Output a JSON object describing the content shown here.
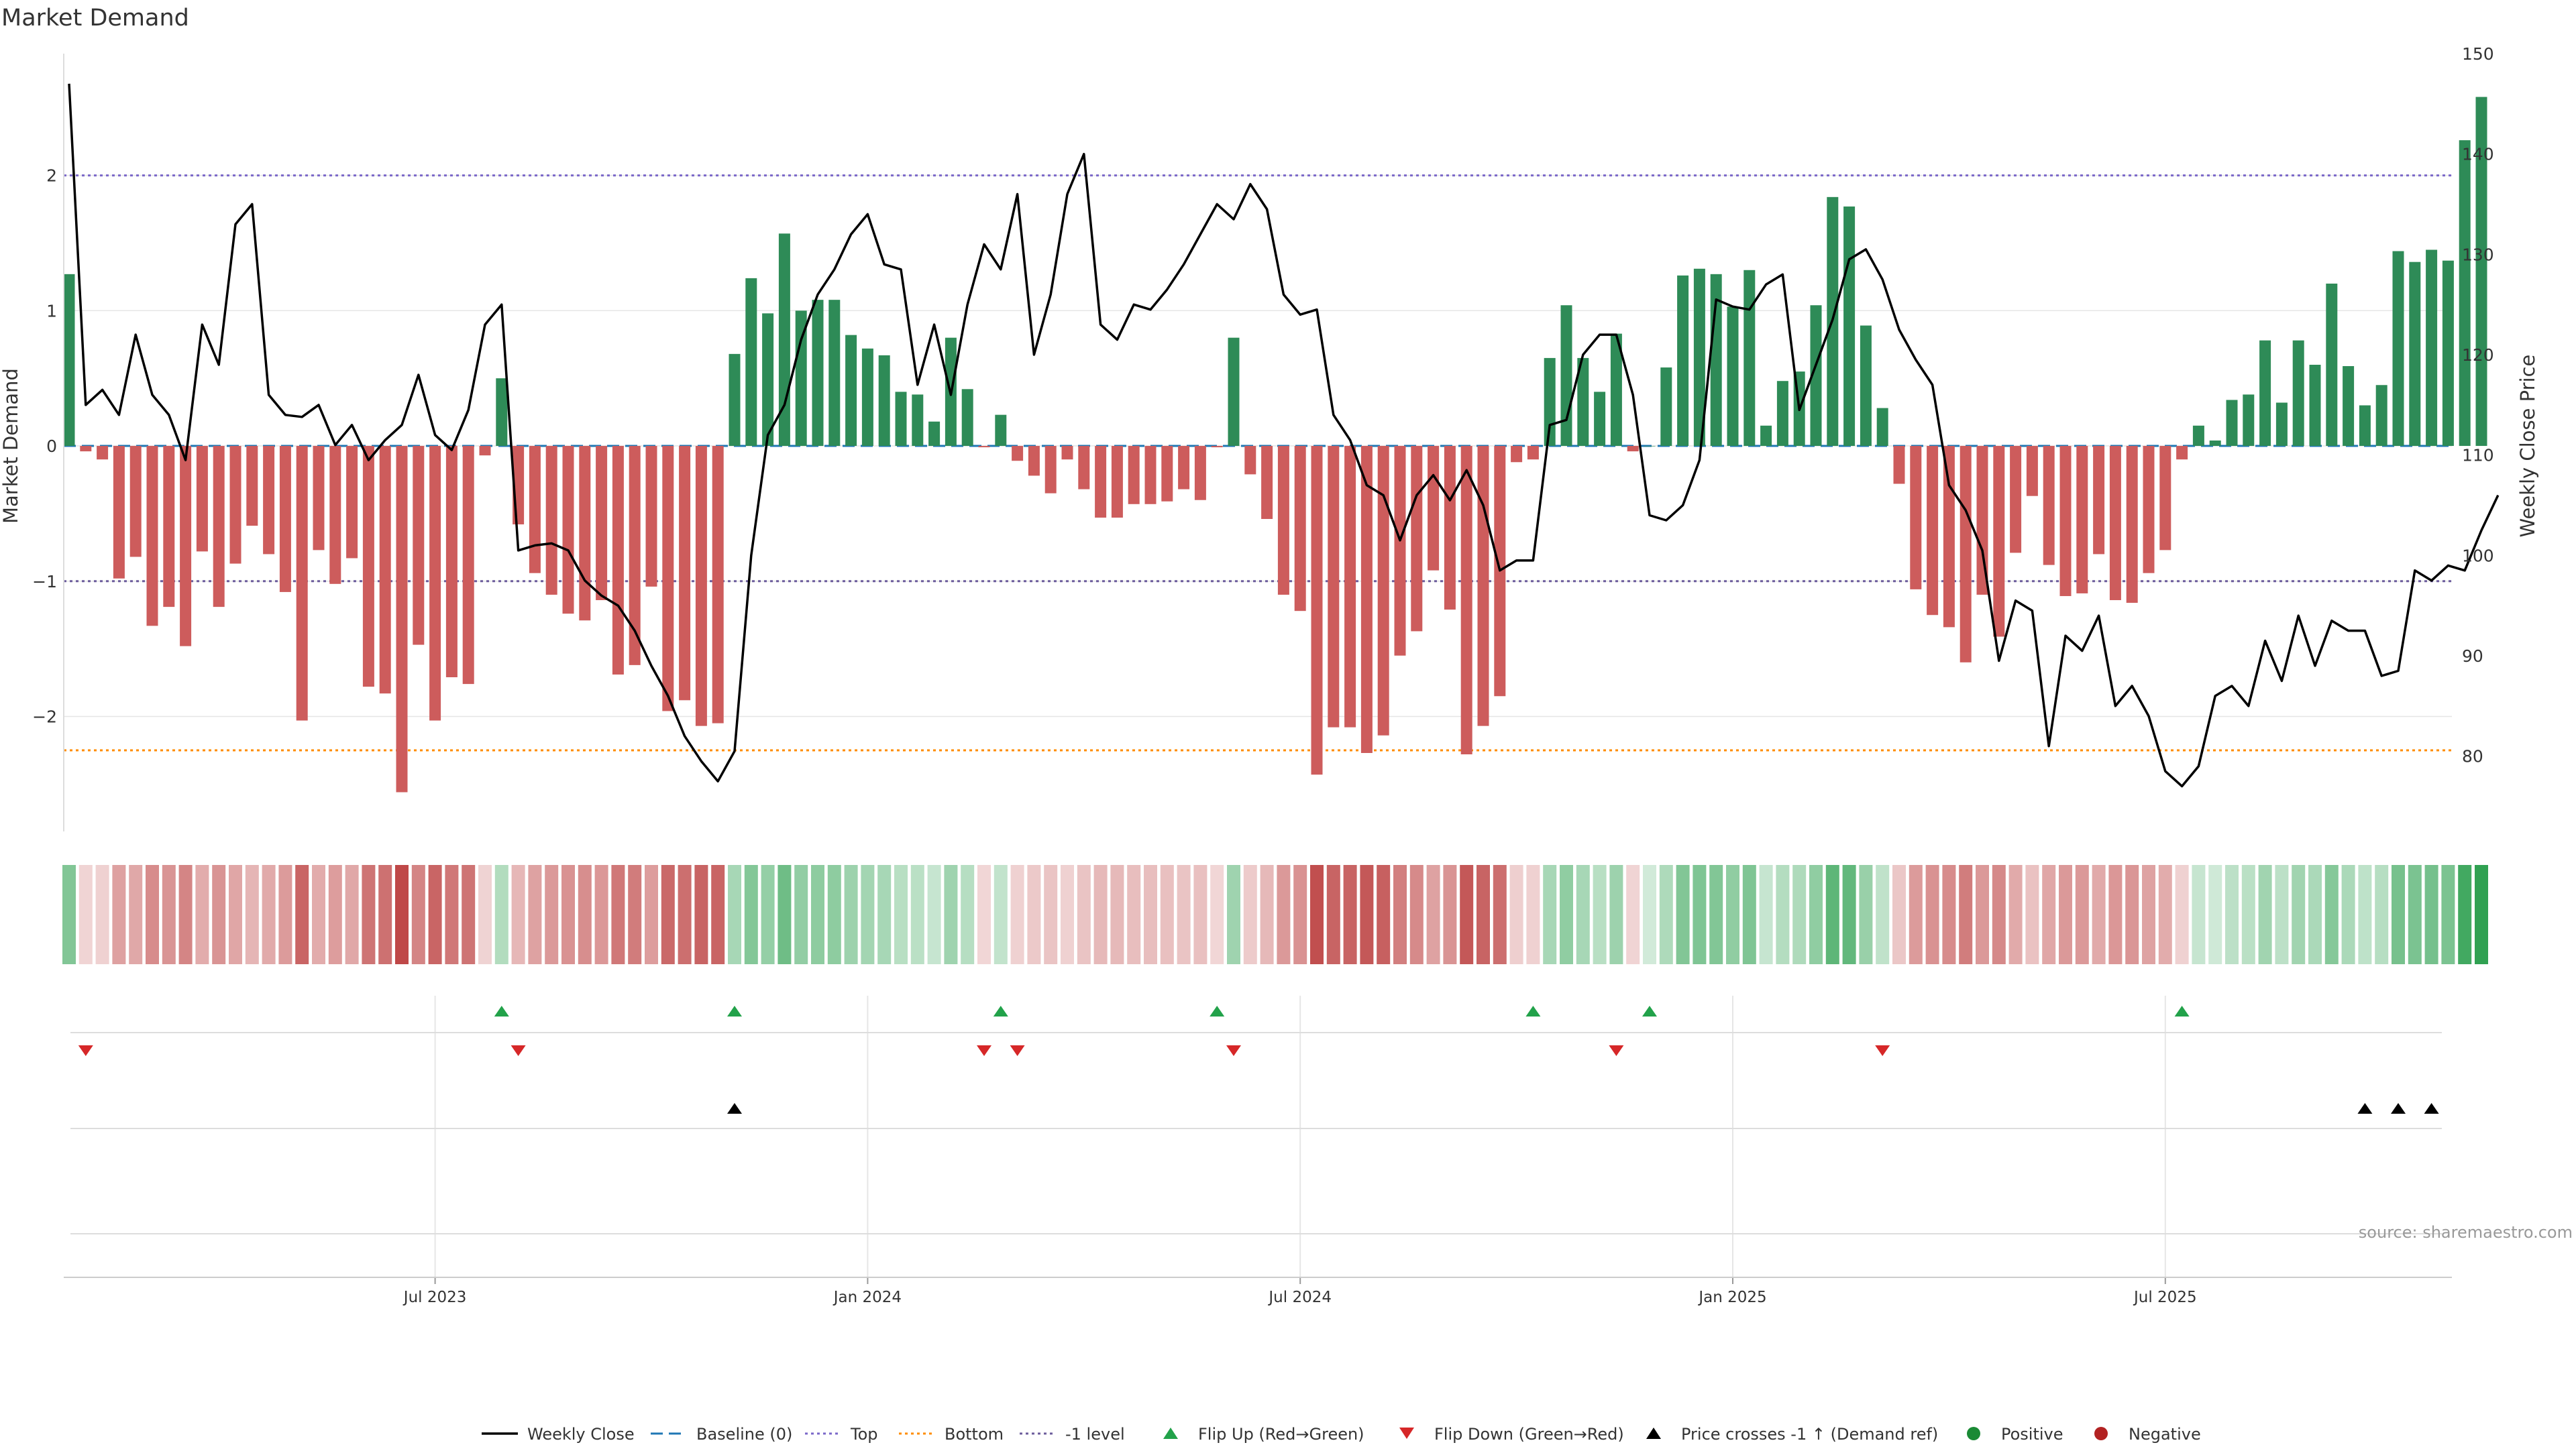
{
  "title": "Market Demand",
  "source": "source: sharemaestro.com",
  "colors": {
    "positive": "#2e8b57",
    "negative": "#cd5c5c",
    "price": "#000000",
    "baseline": "#1f77b4",
    "top": "#7b68c9",
    "bottom": "#ff8c00",
    "minus1": "#6c5c9c",
    "flip_up": "#22a24a",
    "flip_down": "#d62728",
    "cross": "#000000",
    "pos_dot": "#1a8a35",
    "neg_dot": "#b22222",
    "grid": "#e6e6e6"
  },
  "chart_data": {
    "type": "bar",
    "title": "Market Demand",
    "ylabel": "Market Demand",
    "y2label": "Weekly Close Price",
    "ylim": [
      -2.85,
      2.9
    ],
    "y2lim": [
      72.5,
      150
    ],
    "y_ticks": [
      {
        "v": 2,
        "label": "2"
      },
      {
        "v": 1,
        "label": "1"
      },
      {
        "v": 0,
        "label": "0"
      },
      {
        "v": -1,
        "label": "−1"
      },
      {
        "v": -2,
        "label": "−2"
      }
    ],
    "y2_ticks": [
      {
        "v": 150,
        "label": "150"
      },
      {
        "v": 140,
        "label": "140"
      },
      {
        "v": 130,
        "label": "130"
      },
      {
        "v": 120,
        "label": "120"
      },
      {
        "v": 110,
        "label": "110"
      },
      {
        "v": 100,
        "label": "100"
      },
      {
        "v": 90,
        "label": "90"
      },
      {
        "v": 80,
        "label": "80"
      }
    ],
    "x_ticks": [
      {
        "i": 22,
        "label": "Jul 2023"
      },
      {
        "i": 48,
        "label": "Jan 2024"
      },
      {
        "i": 74,
        "label": "Jul 2024"
      },
      {
        "i": 100,
        "label": "Jan 2025"
      },
      {
        "i": 126,
        "label": "Jul 2025"
      }
    ],
    "reference_lines": [
      {
        "name": "Top",
        "y": 2.0
      },
      {
        "name": "Bottom",
        "y": -2.25
      },
      {
        "name": "-1 level",
        "y": -1.0
      },
      {
        "name": "Baseline (0)",
        "y": 0.0
      }
    ],
    "demand": [
      1.27,
      -0.04,
      -0.1,
      -0.98,
      -0.82,
      -1.33,
      -1.19,
      -1.48,
      -0.78,
      -1.19,
      -0.87,
      -0.59,
      -0.8,
      -1.08,
      -2.03,
      -0.77,
      -1.02,
      -0.83,
      -1.78,
      -1.83,
      -2.56,
      -1.47,
      -2.03,
      -1.71,
      -1.76,
      -0.07,
      0.5,
      -0.58,
      -0.94,
      -1.1,
      -1.24,
      -1.29,
      -1.14,
      -1.69,
      -1.62,
      -1.04,
      -1.96,
      -1.88,
      -2.07,
      -2.05,
      0.68,
      1.24,
      0.98,
      1.57,
      1.0,
      1.08,
      1.08,
      0.82,
      0.72,
      0.67,
      0.4,
      0.38,
      0.18,
      0.8,
      0.42,
      -0.01,
      0.23,
      -0.11,
      -0.22,
      -0.35,
      -0.1,
      -0.32,
      -0.53,
      -0.53,
      -0.43,
      -0.43,
      -0.41,
      -0.32,
      -0.4,
      -0.01,
      0.8,
      -0.21,
      -0.54,
      -1.1,
      -1.22,
      -2.43,
      -2.08,
      -2.08,
      -2.27,
      -2.14,
      -1.55,
      -1.37,
      -0.92,
      -1.21,
      -2.28,
      -2.07,
      -1.85,
      -0.12,
      -0.1,
      0.65,
      1.04,
      0.65,
      0.4,
      0.83,
      -0.04,
      0.0,
      0.58,
      1.26,
      1.31,
      1.27,
      1.03,
      1.3,
      0.15,
      0.48,
      0.55,
      1.04,
      1.84,
      1.77,
      0.89,
      0.28,
      -0.28,
      -1.06,
      -1.25,
      -1.34,
      -1.6,
      -1.1,
      -1.41,
      -0.79,
      -0.37,
      -0.88,
      -1.11,
      -1.09,
      -0.8,
      -1.14,
      -1.16,
      -0.94,
      -0.77,
      -0.1,
      0.15,
      0.04,
      0.34,
      0.38,
      0.78,
      0.32,
      0.78,
      0.6,
      1.2,
      0.59,
      0.3,
      0.45,
      1.44,
      1.36,
      1.45,
      1.37,
      2.26,
      2.58
    ],
    "weekly_close": [
      147,
      115,
      116.5,
      114,
      122,
      116,
      114,
      109.5,
      123,
      119,
      133,
      135,
      116,
      114,
      113.8,
      115,
      111,
      113,
      109.5,
      111.5,
      113,
      118,
      112,
      110.5,
      114.5,
      123,
      125,
      100.5,
      101,
      101.2,
      100.5,
      97.5,
      96,
      95,
      92.5,
      89,
      86,
      82,
      79.5,
      77.5,
      80.5,
      100,
      112,
      115,
      121.5,
      126,
      128.5,
      132,
      134,
      129,
      128.5,
      117,
      123,
      116,
      125,
      131,
      128.5,
      136,
      120,
      126,
      136,
      140,
      123,
      121.5,
      125,
      124.5,
      126.5,
      129,
      132,
      135,
      133.5,
      137,
      134.5,
      126,
      124,
      124.5,
      114,
      111.5,
      107,
      106,
      101.5,
      106,
      108,
      105.5,
      108.5,
      105,
      98.5,
      99.5,
      99.5,
      113,
      113.5,
      120,
      122,
      122,
      116,
      104,
      103.5,
      105,
      109.5,
      125.5,
      124.8,
      124.5,
      127,
      128,
      114.5,
      119,
      123.5,
      129.5,
      130.5,
      127.5,
      122.5,
      119.5,
      117,
      107,
      104.5,
      100.5,
      89.5,
      95.5,
      94.5,
      81,
      92,
      90.5,
      94,
      85,
      87,
      84,
      78.5,
      77,
      79,
      86,
      87,
      85,
      91.5,
      87.5,
      94,
      89,
      93.5,
      92.5,
      92.5,
      88,
      88.5,
      98.5,
      97.5,
      99,
      98.5,
      102.5,
      106
    ]
  },
  "flip_up_indices": [
    26,
    40,
    56,
    69,
    88,
    95,
    127
  ],
  "flip_down_indices": [
    1,
    27,
    55,
    57,
    70,
    93,
    109
  ],
  "price_cross_indices": [
    40,
    138,
    140,
    142
  ],
  "legend": [
    {
      "key": "weekly_close",
      "label": "Weekly Close"
    },
    {
      "key": "baseline",
      "label": "Baseline (0)"
    },
    {
      "key": "top",
      "label": "Top"
    },
    {
      "key": "bottom",
      "label": "Bottom"
    },
    {
      "key": "minus1",
      "label": "-1 level"
    },
    {
      "key": "flip_up",
      "label": "Flip Up (Red→Green)"
    },
    {
      "key": "flip_down",
      "label": "Flip Down (Green→Red)"
    },
    {
      "key": "cross",
      "label": "Price crosses -1 ↑ (Demand ref)"
    },
    {
      "key": "pos_dot",
      "label": "Positive"
    },
    {
      "key": "neg_dot",
      "label": "Negative"
    }
  ]
}
